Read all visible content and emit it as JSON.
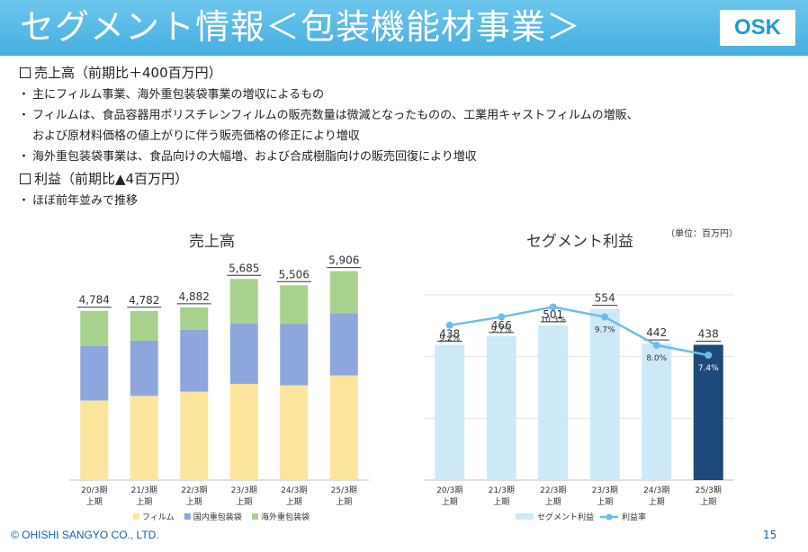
{
  "header": {
    "title": "セグメント情報＜包装機能材事業＞",
    "logo": "OSK"
  },
  "sections": {
    "sales_heading": "売上高（前期比＋400百万円）",
    "sales_bullets": [
      "主にフィルム事業、海外重包装袋事業の増収によるもの",
      "フィルムは、食品容器用ポリスチレンフィルムの販売数量は微減となったものの、工業用キャストフィルムの増販、",
      "および原材料価格の値上がりに伴う販売価格の修正により増収",
      "海外重包装袋事業は、食品向けの大幅増、および合成樹脂向けの販売回復により増収"
    ],
    "profit_heading": "利益（前期比▲4百万円）",
    "profit_bullets": [
      "ほぼ前年並みで推移"
    ]
  },
  "unit": "（単位：百万円）",
  "chart_data": [
    {
      "type": "bar",
      "title": "売上高",
      "categories": [
        "20/3期 上期",
        "21/3期 上期",
        "22/3期 上期",
        "23/3期 上期",
        "24/3期 上期",
        "25/3期 上期"
      ],
      "category_lines": [
        [
          "20/3期",
          "上期"
        ],
        [
          "21/3期",
          "上期"
        ],
        [
          "22/3期",
          "上期"
        ],
        [
          "23/3期",
          "上期"
        ],
        [
          "24/3期",
          "上期"
        ],
        [
          "25/3期",
          "上期"
        ]
      ],
      "stacked": true,
      "series": [
        {
          "name": "フィルム",
          "values": [
            2250,
            2380,
            2500,
            2720,
            2680,
            2960
          ],
          "color": "#fbe49c"
        },
        {
          "name": "国内重包装袋",
          "values": [
            1540,
            1560,
            1750,
            1710,
            1730,
            1760
          ],
          "color": "#8ea6de"
        },
        {
          "name": "海外重包装袋",
          "values": [
            994,
            842,
            632,
            1255,
            1096,
            1186
          ],
          "color": "#a9d18e"
        }
      ],
      "totals": [
        "4,784",
        "4,782",
        "4,882",
        "5,685",
        "5,506",
        "5,906"
      ],
      "ylim": [
        0,
        6200
      ]
    },
    {
      "type": "bar",
      "title": "セグメント利益",
      "categories": [
        "20/3期 上期",
        "21/3期 上期",
        "22/3期 上期",
        "23/3期 上期",
        "24/3期 上期",
        "25/3期 上期"
      ],
      "category_lines": [
        [
          "20/3期",
          "上期"
        ],
        [
          "21/3期",
          "上期"
        ],
        [
          "22/3期",
          "上期"
        ],
        [
          "23/3期",
          "上期"
        ],
        [
          "24/3期",
          "上期"
        ],
        [
          "25/3期",
          "上期"
        ]
      ],
      "series": [
        {
          "name": "セグメント利益",
          "values": [
            438,
            466,
            501,
            554,
            442,
            438
          ],
          "labels": [
            "438",
            "466",
            "501",
            "554",
            "442",
            "438"
          ],
          "color": "#cde9f7",
          "highlight_color": "#1d4a7a"
        },
        {
          "name": "利益率",
          "type": "line",
          "values": [
            9.2,
            9.7,
            10.3,
            9.7,
            8.0,
            7.4
          ],
          "labels": [
            "9.2%",
            "9.7%",
            "10.3%",
            "9.7%",
            "8.0%",
            "7.4%"
          ],
          "color": "#6dbde8"
        }
      ],
      "ylim": [
        0,
        600
      ],
      "y2lim": [
        0,
        20
      ],
      "grid": true
    }
  ],
  "footer": {
    "copyright": "© OHISHI SANGYO CO., LTD.",
    "page": "15"
  }
}
